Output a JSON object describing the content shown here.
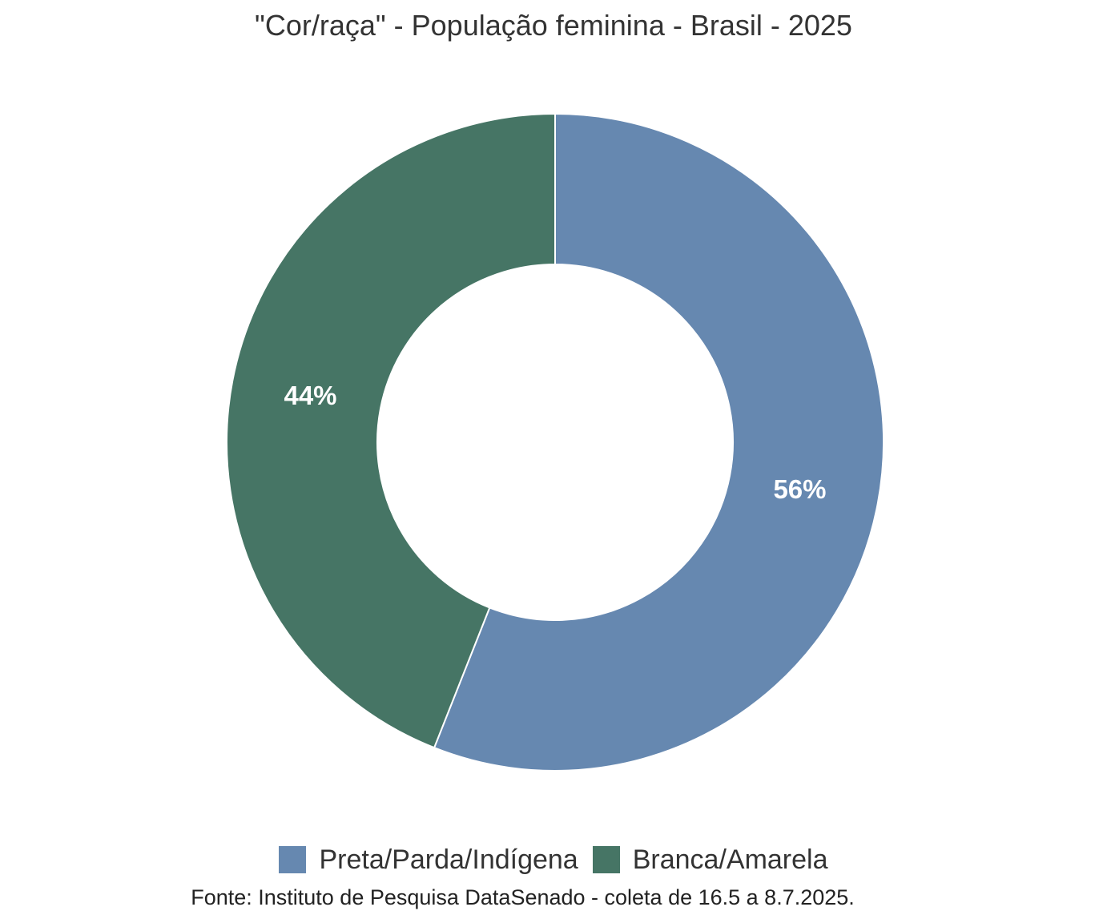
{
  "chart_data": {
    "type": "pie",
    "variant": "donut",
    "title": "\"Cor/raça\" - População feminina - Brasil - 2025",
    "categories": [
      "Preta/Parda/Indígena",
      "Branca/Amarela"
    ],
    "values": [
      56,
      44
    ],
    "value_labels": [
      "56%",
      "44%"
    ],
    "colors": [
      "#6688b0",
      "#467565"
    ],
    "legend_position": "bottom",
    "start_angle": "12 o'clock, clockwise",
    "source": "Fonte: Instituto de Pesquisa DataSenado - coleta de 16.5 a 8.7.2025."
  }
}
